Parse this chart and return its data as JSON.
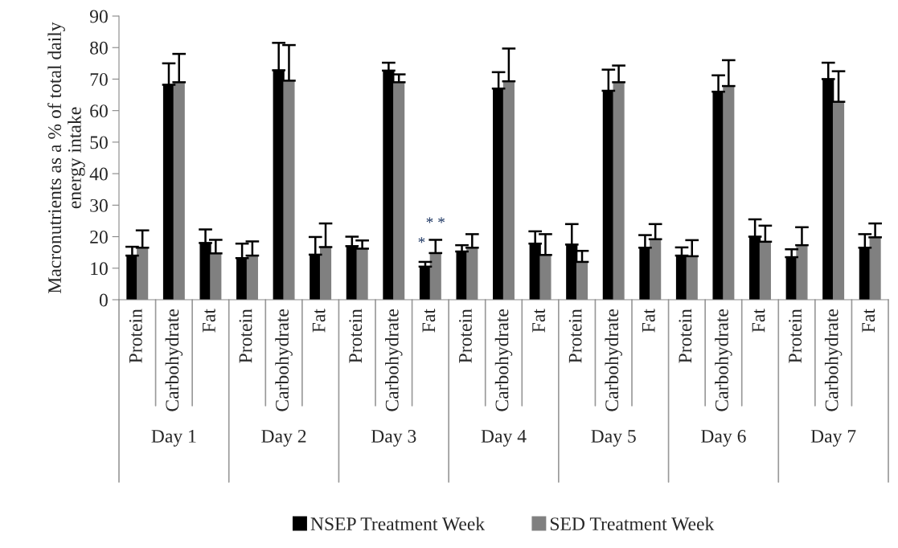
{
  "chart_data": {
    "type": "bar",
    "ylabel": "Macronutrients as a % of total daily energy intake",
    "categories": [
      "Protein",
      "Carbohydrate",
      "Fat",
      "Protein",
      "Carbohydrate",
      "Fat",
      "Protein",
      "Carbohydrate",
      "Fat",
      "Protein",
      "Carbohydrate",
      "Fat",
      "Protein",
      "Carbohydrate",
      "Fat",
      "Protein",
      "Carbohydrate",
      "Fat",
      "Protein",
      "Carbohydrate",
      "Fat"
    ],
    "series": [
      {
        "name": "NSEP Treatment Week",
        "color": "#000000",
        "values": [
          14.0,
          68.2,
          18.0,
          13.2,
          72.8,
          14.3,
          17.0,
          72.7,
          10.5,
          15.3,
          67.0,
          17.8,
          17.5,
          66.3,
          16.5,
          14.0,
          66.0,
          20.0,
          13.5,
          70.0,
          16.5
        ],
        "errors": [
          [
            14.0,
            16.8
          ],
          [
            68.2,
            75.0
          ],
          [
            18.0,
            22.3
          ],
          [
            13.2,
            17.8
          ],
          [
            72.8,
            81.5
          ],
          [
            14.3,
            19.9
          ],
          [
            17.0,
            20.0
          ],
          [
            72.7,
            75.2
          ],
          [
            10.5,
            12.0
          ],
          [
            15.3,
            17.3
          ],
          [
            67.0,
            72.2
          ],
          [
            17.8,
            21.7
          ],
          [
            17.5,
            24.0
          ],
          [
            66.3,
            73.0
          ],
          [
            16.5,
            20.5
          ],
          [
            14.0,
            16.6
          ],
          [
            66.0,
            71.2
          ],
          [
            20.0,
            25.5
          ],
          [
            13.5,
            16.0
          ],
          [
            70.0,
            75.2
          ],
          [
            16.5,
            20.8
          ]
        ]
      },
      {
        "name": "SED Treatment Week",
        "color": "#808080",
        "values": [
          16.5,
          69.0,
          14.7,
          14.0,
          69.5,
          16.7,
          16.2,
          69.0,
          14.8,
          16.5,
          69.3,
          14.2,
          12.0,
          69.0,
          19.2,
          13.8,
          67.8,
          18.4,
          17.3,
          62.8,
          19.8
        ],
        "errors": [
          [
            16.5,
            22.0
          ],
          [
            69.0,
            78.0
          ],
          [
            14.7,
            19.0
          ],
          [
            14.0,
            18.5
          ],
          [
            69.5,
            80.8
          ],
          [
            16.7,
            24.2
          ],
          [
            16.2,
            18.8
          ],
          [
            69.0,
            71.5
          ],
          [
            14.8,
            19.0
          ],
          [
            16.5,
            20.8
          ],
          [
            69.3,
            79.7
          ],
          [
            14.2,
            20.8
          ],
          [
            12.0,
            15.5
          ],
          [
            69.0,
            74.3
          ],
          [
            19.2,
            24.0
          ],
          [
            13.8,
            18.9
          ],
          [
            67.8,
            76.0
          ],
          [
            18.4,
            23.5
          ],
          [
            17.3,
            23.0
          ],
          [
            62.8,
            72.5
          ],
          [
            19.8,
            24.2
          ]
        ]
      }
    ],
    "ylim": [
      0,
      90
    ],
    "yticks": [
      0,
      10,
      20,
      30,
      40,
      50,
      60,
      70,
      80,
      90
    ],
    "grid": false,
    "legend": "bottom",
    "annotations": [
      "Day 1",
      "Day 2",
      "Day 3",
      "Day 4",
      "Day 5",
      "Day 6",
      "Day 7",
      "*",
      "* *"
    ]
  }
}
